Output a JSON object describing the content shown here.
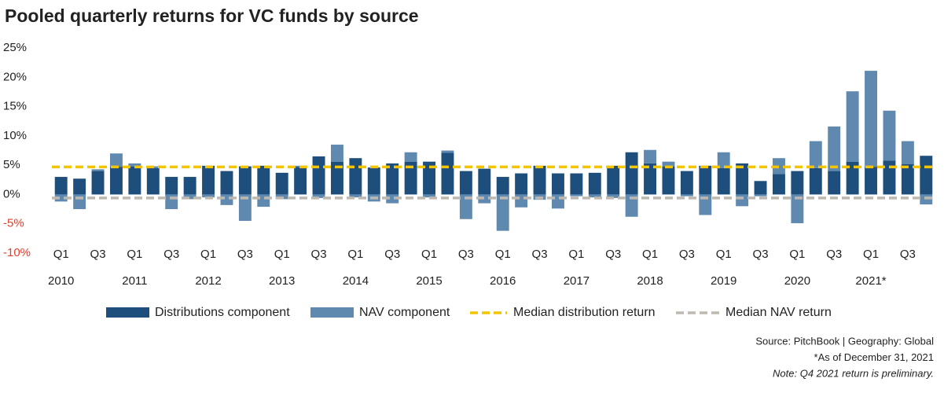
{
  "chart_data": {
    "type": "stacked_bar",
    "title": "Pooled quarterly returns for VC funds by source",
    "categories": [
      "Q1",
      null,
      "Q3",
      null,
      "Q1",
      null,
      "Q3",
      null,
      "Q1",
      null,
      "Q3",
      null,
      "Q1",
      null,
      "Q3",
      null,
      "Q1",
      null,
      "Q3",
      null,
      "Q1",
      null,
      "Q3",
      null,
      "Q1",
      null,
      "Q3",
      null,
      "Q1",
      null,
      "Q3",
      null,
      "Q1",
      null,
      "Q3",
      null,
      "Q1",
      null,
      "Q3",
      null,
      "Q1",
      null,
      "Q3",
      null,
      "Q1",
      null,
      "Q3",
      null
    ],
    "year_labels": [
      "2010",
      "2011",
      "2012",
      "2013",
      "2014",
      "2015",
      "2016",
      "2017",
      "2018",
      "2019",
      "2020",
      "2021*"
    ],
    "series": [
      {
        "name": "Distributions component",
        "color": "#1d4e7c",
        "values": [
          3.0,
          2.7,
          4.0,
          4.7,
          4.8,
          4.5,
          3.0,
          3.0,
          4.9,
          4.0,
          4.8,
          4.9,
          3.7,
          4.7,
          6.5,
          5.6,
          6.2,
          4.6,
          5.3,
          5.6,
          5.6,
          7.1,
          4.0,
          4.4,
          3.0,
          3.6,
          4.9,
          3.6,
          3.6,
          3.7,
          4.9,
          7.2,
          5.3,
          4.8,
          4.0,
          4.9,
          4.5,
          5.3,
          2.3,
          3.5,
          4.0,
          4.5,
          4.0,
          5.6,
          4.7,
          5.8,
          5.2,
          6.6
        ]
      },
      {
        "name": "NAV component",
        "color": "#6089b0",
        "values": [
          -1.2,
          -2.5,
          0.3,
          2.3,
          0.5,
          0.3,
          -2.5,
          -0.8,
          -0.5,
          -1.8,
          -4.5,
          -2.1,
          -0.8,
          0.2,
          -0.6,
          2.9,
          -0.5,
          -1.2,
          -1.5,
          1.6,
          -0.5,
          0.4,
          -4.2,
          -1.5,
          -6.2,
          -2.2,
          -0.9,
          -2.4,
          -0.3,
          -0.5,
          -0.6,
          -3.8,
          2.3,
          0.8,
          -0.3,
          -3.5,
          2.7,
          -2.0,
          -0.3,
          2.7,
          -4.9,
          4.6,
          7.6,
          12.0,
          16.4,
          8.5,
          3.9,
          -1.7
        ]
      }
    ],
    "reference_lines": [
      {
        "name": "Median distribution return",
        "color": "#f2c500",
        "value": 4.7
      },
      {
        "name": "Median NAV return",
        "color": "#bdb9b0",
        "value": -0.6
      }
    ],
    "ylim": [
      -10,
      25
    ],
    "yticks": [
      {
        "value": 25,
        "label": "25%"
      },
      {
        "value": 20,
        "label": "20%"
      },
      {
        "value": 15,
        "label": "15%"
      },
      {
        "value": 10,
        "label": "10%"
      },
      {
        "value": 5,
        "label": "5%"
      },
      {
        "value": 0,
        "label": "0%"
      },
      {
        "value": -5,
        "label": "-5%"
      },
      {
        "value": -10,
        "label": "-10%"
      }
    ],
    "negative_label_color": "#e0402f",
    "notes": [
      "Source: PitchBook  |  Geography: Global",
      "*As of December 31, 2021",
      "Note: Q4 2021 return is preliminary."
    ]
  }
}
